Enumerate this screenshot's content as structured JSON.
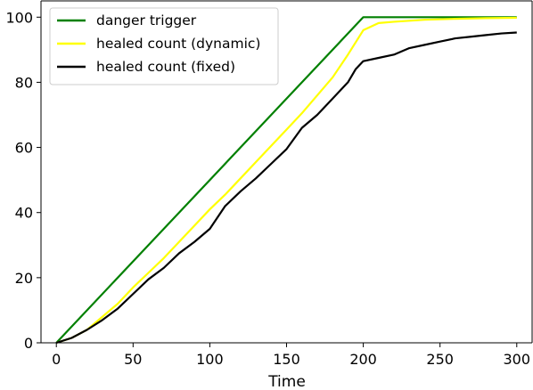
{
  "chart_data": {
    "type": "line",
    "title": "",
    "xlabel": "Time",
    "ylabel": "",
    "xlim": [
      -10,
      310
    ],
    "ylim": [
      0,
      105
    ],
    "xticks": [
      0,
      50,
      100,
      150,
      200,
      250,
      300
    ],
    "yticks": [
      0,
      20,
      40,
      60,
      80,
      100
    ],
    "legend_position": "top-left",
    "grid": false,
    "series": [
      {
        "name": "danger trigger",
        "color": "#008000",
        "x": [
          0,
          200,
          300
        ],
        "y": [
          0,
          100,
          100
        ]
      },
      {
        "name": "healed count (dynamic)",
        "color": "#ffff00",
        "x": [
          0,
          10,
          20,
          30,
          40,
          50,
          60,
          70,
          80,
          90,
          100,
          110,
          120,
          130,
          140,
          150,
          160,
          170,
          180,
          190,
          200,
          210,
          220,
          240,
          260,
          280,
          300
        ],
        "y": [
          0,
          1.5,
          4,
          8,
          12,
          17,
          21.5,
          26,
          31,
          36,
          41,
          45.5,
          50.5,
          55.5,
          60.5,
          65.5,
          70.5,
          76,
          81.5,
          88.5,
          96,
          98.2,
          98.6,
          99.2,
          99.5,
          99.7,
          99.8
        ]
      },
      {
        "name": "healed count (fixed)",
        "color": "#000000",
        "x": [
          0,
          10,
          20,
          30,
          40,
          50,
          60,
          70,
          80,
          90,
          100,
          110,
          120,
          130,
          140,
          150,
          160,
          170,
          180,
          190,
          195,
          200,
          210,
          220,
          230,
          240,
          250,
          260,
          270,
          280,
          290,
          300
        ],
        "y": [
          0,
          1.5,
          4,
          7,
          10.5,
          15,
          19.5,
          23,
          27.5,
          31,
          35,
          42,
          46.5,
          50.5,
          55,
          59.5,
          66,
          70,
          75,
          80,
          84,
          86.5,
          87.5,
          88.5,
          90.5,
          91.5,
          92.5,
          93.5,
          94,
          94.5,
          95,
          95.3
        ]
      }
    ]
  }
}
